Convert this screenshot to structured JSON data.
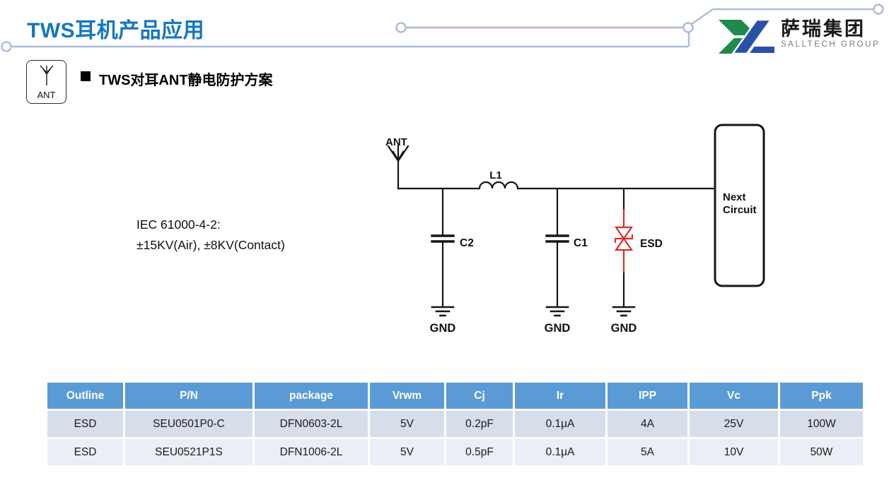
{
  "page": {
    "title": "TWS耳机产品应用"
  },
  "colors": {
    "title_blue": "#1577BE",
    "trace_line": "#AEBBD8",
    "logo_green": "#1E8A4B",
    "logo_blue": "#2A51A6",
    "circuit_black": "#151515",
    "esd_red": "#D92E2C",
    "table_header_bg": "#5B9BD5",
    "table_header_text": "#ffffff",
    "table_row_odd_bg": "#D7DDE9",
    "table_row_even_bg": "#EBEEF5",
    "table_text": "#1b1b1b"
  },
  "logo": {
    "company_cn": "萨瑞集团",
    "company_en": "SALLTECH GROUP"
  },
  "section": {
    "ant_box_label": "ANT",
    "heading": "TWS对耳ANT静电防护方案"
  },
  "note": {
    "line1": "IEC 61000-4-2:",
    "line2": "±15KV(Air), ±8KV(Contact)"
  },
  "circuit": {
    "ant_label": "ANT",
    "inductor_label": "L1",
    "cap2_label": "C2",
    "cap1_label": "C1",
    "esd_label": "ESD",
    "gnd_label": "GND",
    "next_circuit_line1": "Next",
    "next_circuit_line2": "Circuit"
  },
  "table": {
    "headers": [
      "Outline",
      "P/N",
      "package",
      "Vrwm",
      "Cj",
      "Ir",
      "IPP",
      "Vc",
      "Ppk"
    ],
    "rows": [
      [
        "ESD",
        "SEU0501P0-C",
        "DFN0603-2L",
        "5V",
        "0.2pF",
        "0.1μA",
        "4A",
        "25V",
        "100W"
      ],
      [
        "ESD",
        "SEU0521P1S",
        "DFN1006-2L",
        "5V",
        "0.5pF",
        "0.1μA",
        "5A",
        "10V",
        "50W"
      ]
    ]
  }
}
